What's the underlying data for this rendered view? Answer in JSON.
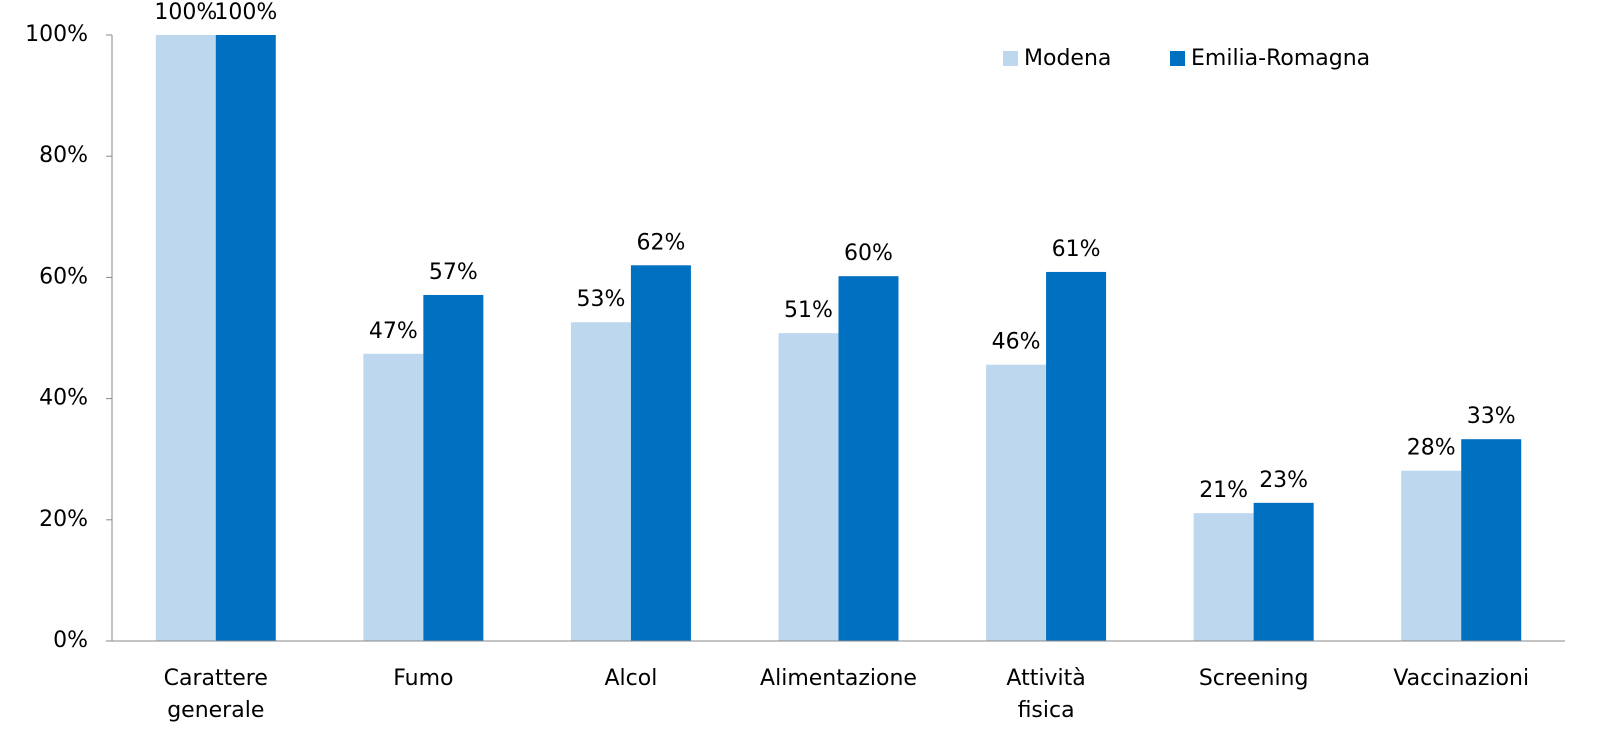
{
  "chart_data": {
    "type": "bar",
    "categories": [
      "Carattere generale",
      "Fumo",
      "Alcol",
      "Alimentazione",
      "Attività fisica",
      "Screening",
      "Vaccinazioni"
    ],
    "series": [
      {
        "name": "Modena",
        "color": "#bdd7ee",
        "values": [
          100,
          47.4,
          52.6,
          50.8,
          45.6,
          21.1,
          28.1
        ],
        "value_labels": [
          "100%",
          "47%",
          "53%",
          "51%",
          "46%",
          "21%",
          "28%"
        ]
      },
      {
        "name": "Emilia-Romagna",
        "color": "#0070c0",
        "values": [
          100,
          57.1,
          62.0,
          60.2,
          60.9,
          22.8,
          33.3
        ],
        "value_labels": [
          "100%",
          "57%",
          "62%",
          "60%",
          "61%",
          "23%",
          "33%"
        ]
      }
    ],
    "ylim": [
      0,
      100
    ],
    "yticks": [
      {
        "value": 0,
        "label": "0%"
      },
      {
        "value": 20,
        "label": "20%"
      },
      {
        "value": 40,
        "label": "40%"
      },
      {
        "value": 60,
        "label": "60%"
      },
      {
        "value": 80,
        "label": "80%"
      },
      {
        "value": 100,
        "label": "100%"
      }
    ],
    "legend": "top-right"
  }
}
